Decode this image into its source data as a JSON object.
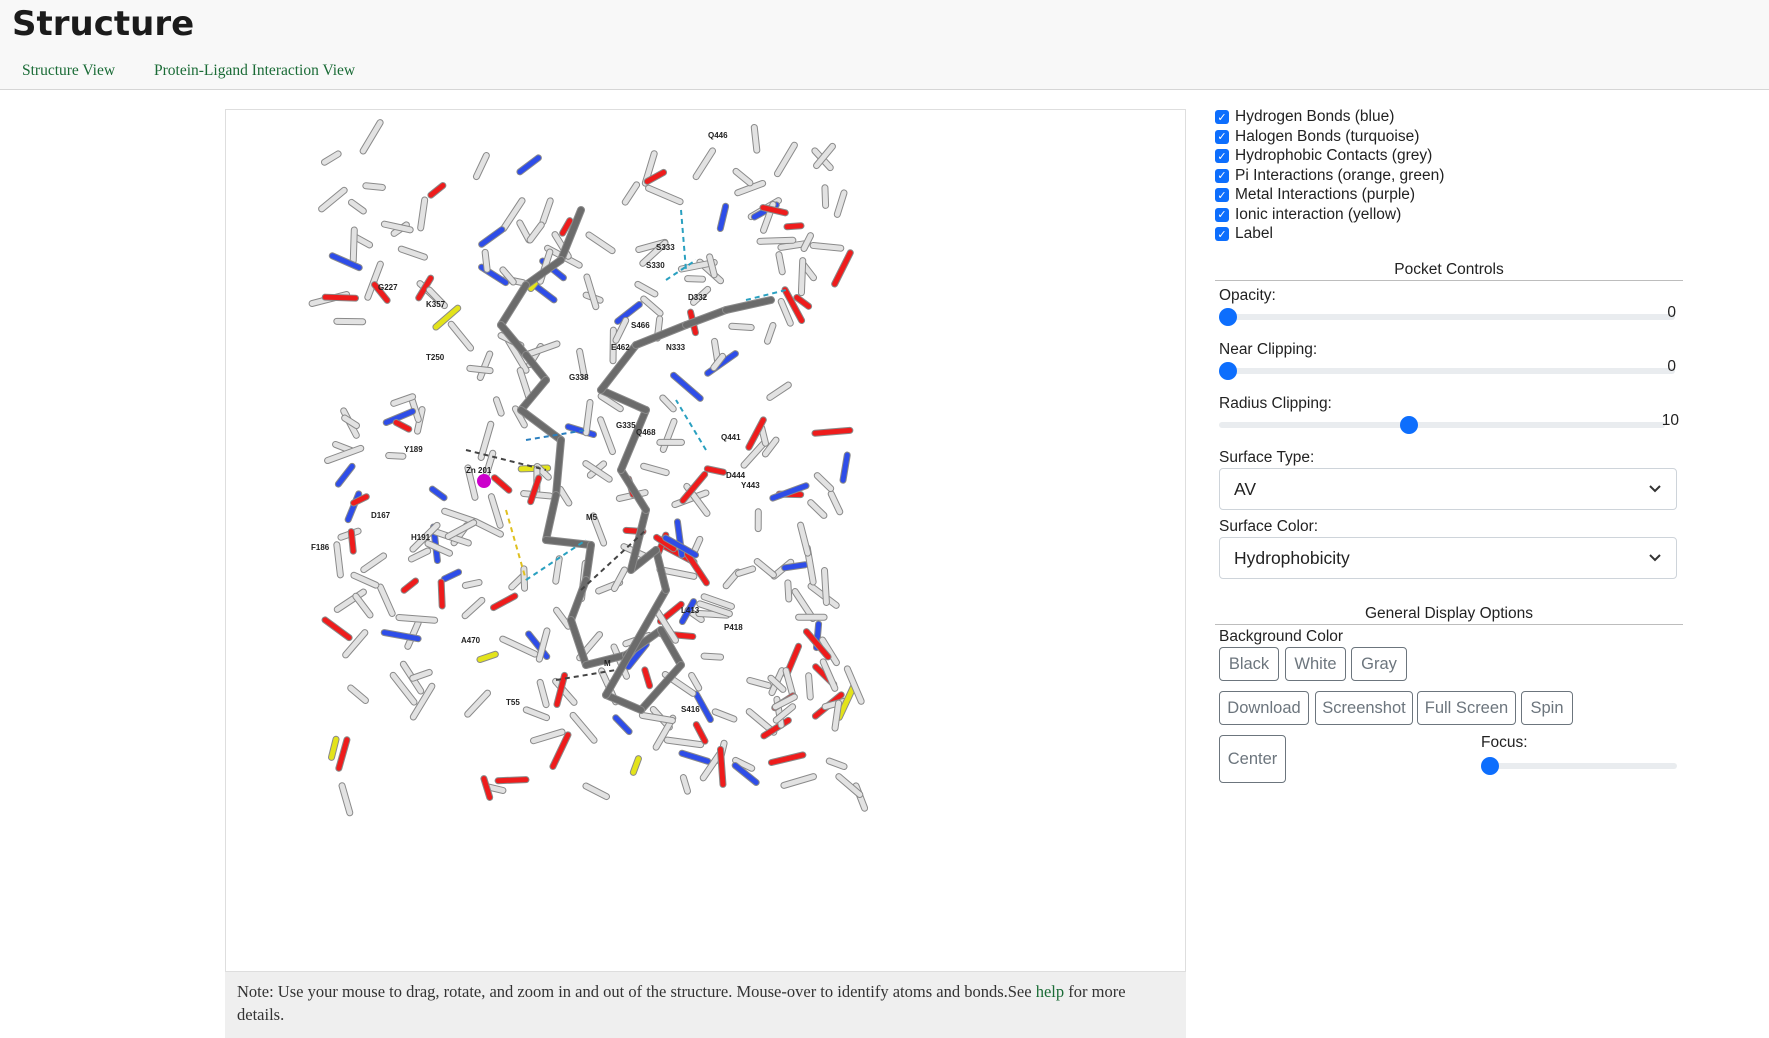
{
  "header": {
    "title": "Structure",
    "tabs": [
      {
        "label": "Structure View"
      },
      {
        "label": "Protein-Ligand Interaction View"
      }
    ]
  },
  "note": {
    "text": "Note: Use your mouse to drag, rotate, and zoom in and out of the structure. Mouse-over to identify atoms and bonds.See ",
    "link": "help",
    "suffix": " for more details."
  },
  "interactions": [
    {
      "label": "Hydrogen Bonds (blue)",
      "checked": true
    },
    {
      "label": "Halogen Bonds (turquoise)",
      "checked": true
    },
    {
      "label": "Hydrophobic Contacts (grey)",
      "checked": true
    },
    {
      "label": "Pi Interactions (orange, green)",
      "checked": true
    },
    {
      "label": "Metal Interactions (purple)",
      "checked": true
    },
    {
      "label": "Ionic interaction (yellow)",
      "checked": true
    },
    {
      "label": "Label",
      "checked": true
    }
  ],
  "pocket": {
    "title": "Pocket Controls",
    "opacity": {
      "label": "Opacity:",
      "value": "0"
    },
    "near_clipping": {
      "label": "Near Clipping:",
      "value": "0"
    },
    "radius_clipping": {
      "label": "Radius Clipping:",
      "value": "10"
    },
    "surface_type": {
      "label": "Surface Type:",
      "value": "AV"
    },
    "surface_color": {
      "label": "Surface Color:",
      "value": "Hydrophobicity"
    }
  },
  "general": {
    "title": "General Display Options",
    "background_label": "Background Color",
    "bg_buttons": [
      "Black",
      "White",
      "Gray"
    ],
    "action_buttons": [
      "Download",
      "Screenshot",
      "Full Screen",
      "Spin"
    ],
    "center_label": "Center",
    "focus_label": "Focus:"
  },
  "residue_labels": [
    "Q446",
    "G227",
    "K357",
    "T250",
    "S333",
    "S330",
    "D332",
    "Y189",
    "E462",
    "G338",
    "N333",
    "S466",
    "H191",
    "Q468",
    "G335",
    "Q441",
    "Y443",
    "D444",
    "D167",
    "F186",
    "M5",
    "L413",
    "P418",
    "A470",
    "M",
    "T55",
    "S416",
    "Zn 201"
  ],
  "colors": {
    "accent": "#0d6efd",
    "link": "#1a6b36",
    "metal": "#cc00cc"
  }
}
